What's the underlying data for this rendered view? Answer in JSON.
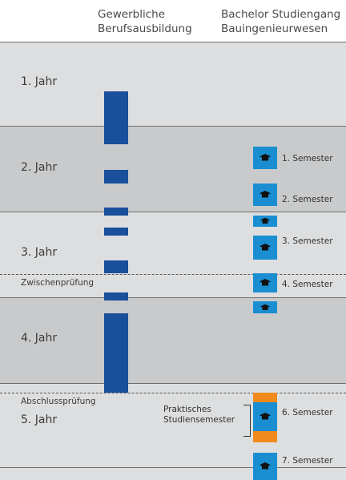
{
  "columns": {
    "left": {
      "line1": "Gewerbliche",
      "line2": "Berufsausbildung"
    },
    "right": {
      "line1": "Bachelor Studiengang",
      "line2": "Bauingenieurwesen"
    }
  },
  "years": [
    "1. Jahr",
    "2. Jahr",
    "3. Jahr",
    "4. Jahr",
    "5. Jahr"
  ],
  "exams": {
    "intermediate": "Zwischenprüfung",
    "final": "Abschlussprüfung"
  },
  "semesters": [
    "1. Semester",
    "2. Semester",
    "3. Semester",
    "4. Semester",
    "6. Semester",
    "7. Semester"
  ],
  "practical": {
    "line1": "Praktisches",
    "line2": "Studiensemester"
  },
  "colors": {
    "training_bar": "#1a4f9c",
    "semester_block": "#1b8ed1",
    "practical_block": "#f08a1e",
    "band_dark": "#c9cacb",
    "band_light": "#dddedf"
  },
  "icons": {
    "semester": "graduation-cap-icon"
  }
}
